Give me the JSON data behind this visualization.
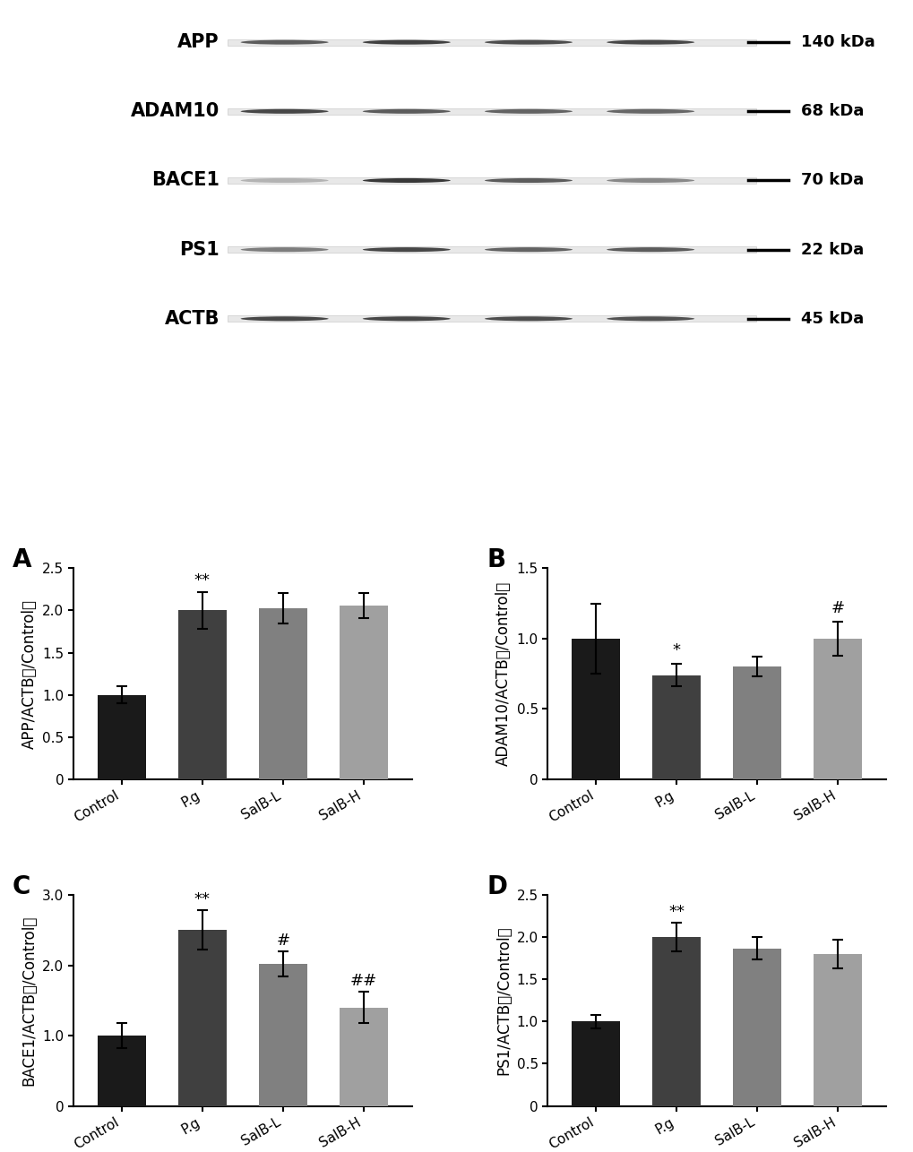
{
  "wb_labels": [
    "APP",
    "ADAM10",
    "BACE1",
    "PS1",
    "ACTB"
  ],
  "wb_kda": [
    "140 kDa",
    "68 kDa",
    "70 kDa",
    "22 kDa",
    "45 kDa"
  ],
  "categories": [
    "Control",
    "P.g",
    "SalB-L",
    "SalB-H"
  ],
  "bar_colors": [
    "#1a1a1a",
    "#404040",
    "#808080",
    "#a0a0a0"
  ],
  "panel_labels": [
    "A",
    "B",
    "C",
    "D"
  ],
  "A_values": [
    1.0,
    2.0,
    2.03,
    2.06
  ],
  "A_errors": [
    0.1,
    0.22,
    0.18,
    0.15
  ],
  "A_ylabel": "APP/ACTB（/Control）",
  "A_ylim": [
    0,
    2.5
  ],
  "A_yticks": [
    0,
    0.5,
    1.0,
    1.5,
    2.0,
    2.5
  ],
  "A_sig": [
    "",
    "**",
    "",
    ""
  ],
  "B_values": [
    1.0,
    0.74,
    0.8,
    1.0
  ],
  "B_errors": [
    0.25,
    0.08,
    0.07,
    0.12
  ],
  "B_ylabel": "ADAM10/ACTB（/Control）",
  "B_ylim": [
    0,
    1.5
  ],
  "B_yticks": [
    0,
    0.5,
    1.0,
    1.5
  ],
  "B_sig": [
    "",
    "*",
    "",
    "#"
  ],
  "C_values": [
    1.0,
    2.5,
    2.02,
    1.4
  ],
  "C_errors": [
    0.18,
    0.28,
    0.18,
    0.22
  ],
  "C_ylabel": "BACE1/ACTB（/Control）",
  "C_ylim": [
    0,
    3.0
  ],
  "C_yticks": [
    0,
    1.0,
    2.0,
    3.0
  ],
  "C_sig": [
    "",
    "**",
    "#",
    "##"
  ],
  "D_values": [
    1.0,
    2.0,
    1.87,
    1.8
  ],
  "D_errors": [
    0.08,
    0.17,
    0.13,
    0.17
  ],
  "D_ylabel": "PS1/ACTB（/Control）",
  "D_ylim": [
    0,
    2.5
  ],
  "D_yticks": [
    0,
    0.5,
    1.0,
    1.5,
    2.0,
    2.5
  ],
  "D_sig": [
    "",
    "**",
    "",
    ""
  ],
  "background_color": "#ffffff",
  "axis_linewidth": 1.5,
  "bar_width": 0.6,
  "errorbar_capsize": 4,
  "errorbar_linewidth": 1.5,
  "tick_fontsize": 12,
  "label_fontsize": 13,
  "panel_fontsize": 18
}
